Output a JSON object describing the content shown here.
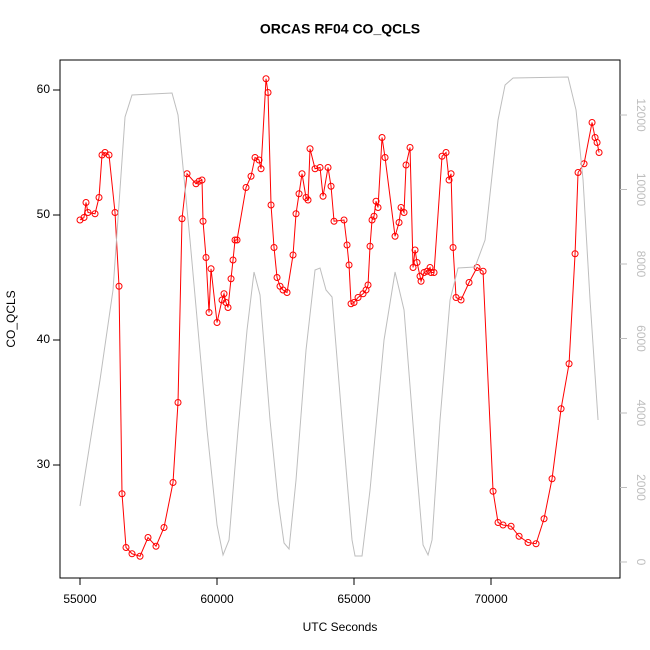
{
  "chart_data": {
    "type": "line",
    "title": "ORCAS RF04 CO_QCLS",
    "xlabel": "UTC Seconds",
    "ylabel": "CO_QCLS",
    "xlim": [
      54270,
      74708
    ],
    "ylim": [
      20.96,
      62.4
    ],
    "y2lim": [
      -430,
      13477
    ],
    "xticks": [
      55000,
      60000,
      65000,
      70000
    ],
    "yticks": [
      30,
      40,
      50,
      60
    ],
    "y2ticks": [
      0,
      2000,
      4000,
      6000,
      8000,
      10000,
      12000
    ],
    "series": [
      {
        "color": "#ff0000",
        "marker": "circle",
        "x": [
          55000,
          55146,
          55219,
          55292,
          55548,
          55694,
          55803,
          55913,
          56059,
          56278,
          56424,
          56533,
          56679,
          56898,
          57190,
          57482,
          57774,
          58066,
          58395,
          58577,
          58723,
          58906,
          59234,
          59344,
          59453,
          59490,
          59599,
          59709,
          59782,
          60001,
          60183,
          60256,
          60329,
          60402,
          60512,
          60585,
          60658,
          60731,
          61059,
          61242,
          61388,
          61534,
          61607,
          61789,
          61862,
          61972,
          62081,
          62191,
          62300,
          62410,
          62556,
          62775,
          62884,
          62994,
          63103,
          63249,
          63322,
          63395,
          63578,
          63760,
          63870,
          64052,
          64162,
          64271,
          64636,
          64746,
          64819,
          64892,
          65001,
          65147,
          65330,
          65439,
          65512,
          65585,
          65658,
          65731,
          65804,
          65877,
          66023,
          66133,
          66498,
          66644,
          66717,
          66826,
          66899,
          67045,
          67155,
          67228,
          67301,
          67410,
          67447,
          67556,
          67666,
          67775,
          67812,
          67921,
          68213,
          68359,
          68469,
          68542,
          68615,
          68724,
          68907,
          69199,
          69491,
          69710,
          70075,
          70257,
          70440,
          70732,
          71024,
          71352,
          71644,
          71936,
          72228,
          72557,
          72849,
          73068,
          73177,
          73396,
          73688,
          73798,
          73871,
          73944
        ],
        "values": [
          49.6,
          49.8,
          51.0,
          50.2,
          50.1,
          51.4,
          54.8,
          55.0,
          54.8,
          50.2,
          44.3,
          27.7,
          23.4,
          22.9,
          22.7,
          24.2,
          23.5,
          25.0,
          28.6,
          35.0,
          49.7,
          53.3,
          52.5,
          52.7,
          52.8,
          49.5,
          46.6,
          42.2,
          45.7,
          41.4,
          43.2,
          43.7,
          43.0,
          42.6,
          44.9,
          46.4,
          48.0,
          48.0,
          52.2,
          53.1,
          54.6,
          54.4,
          53.7,
          60.9,
          59.8,
          50.8,
          47.4,
          45.0,
          44.3,
          44.0,
          43.8,
          46.8,
          50.1,
          51.7,
          53.3,
          51.4,
          51.2,
          55.3,
          53.7,
          53.8,
          51.5,
          53.8,
          52.3,
          49.5,
          49.6,
          47.6,
          46.0,
          42.9,
          43.0,
          43.4,
          43.7,
          44.0,
          44.4,
          47.5,
          49.6,
          49.9,
          51.1,
          50.6,
          56.2,
          54.6,
          48.3,
          49.4,
          50.6,
          50.2,
          54.0,
          55.4,
          45.8,
          47.2,
          46.2,
          45.1,
          44.7,
          45.4,
          45.5,
          45.8,
          45.4,
          45.4,
          54.7,
          55.0,
          52.8,
          53.3,
          47.4,
          43.4,
          43.2,
          44.6,
          45.8,
          45.5,
          27.9,
          25.4,
          25.2,
          25.1,
          24.3,
          23.8,
          23.7,
          25.7,
          28.9,
          34.5,
          38.1,
          46.9,
          53.4,
          54.1,
          57.4,
          56.2,
          55.8,
          55.0
        ]
      },
      {
        "color": "#bebebe",
        "axis": "y2",
        "x": [
          55000,
          55730,
          56205,
          56643,
          56898,
          58358,
          58577,
          59015,
          59636,
          60001,
          60220,
          60439,
          60767,
          61096,
          61351,
          61570,
          61935,
          62227,
          62446,
          62629,
          62884,
          63249,
          63578,
          63760,
          63979,
          64198,
          64563,
          64928,
          65038,
          65293,
          65585,
          66096,
          66498,
          66826,
          67228,
          67520,
          67702,
          67848,
          68140,
          68505,
          68797,
          69418,
          69783,
          70257,
          70513,
          70805,
          72812,
          73104,
          73360,
          73615,
          73907
        ],
        "values": [
          1503,
          4886,
          7302,
          11946,
          12537,
          12591,
          12000,
          8644,
          3544,
          993,
          188,
          591,
          3544,
          6228,
          7785,
          7168,
          3812,
          1664,
          510,
          349,
          2201,
          5691,
          7839,
          7893,
          7302,
          7114,
          3812,
          591,
          161,
          161,
          1933,
          5960,
          7785,
          6765,
          3007,
          456,
          188,
          591,
          3812,
          7034,
          7893,
          7919,
          8644,
          11866,
          12805,
          12993,
          13020,
          12134,
          10255,
          7034,
          3812
        ]
      }
    ]
  }
}
